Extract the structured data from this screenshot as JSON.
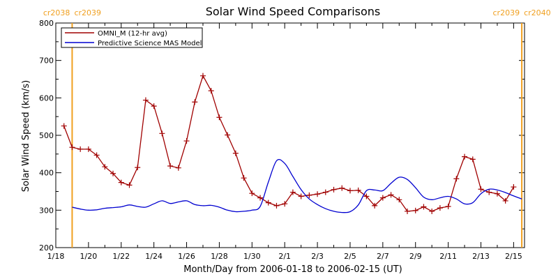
{
  "chart_data": {
    "type": "line",
    "title": "Solar Wind Speed Comparisons",
    "xlabel": "Month/Day from 2006-01-18 to 2006-02-15 (UT)",
    "ylabel": "Solar Wind Speed (km/s)",
    "xlim": [
      "2006-01-18",
      "2006-02-15 16:00"
    ],
    "ylim": [
      200,
      800
    ],
    "yticks": [
      200,
      300,
      400,
      500,
      600,
      700,
      800
    ],
    "xticks": [
      {
        "date": "2006-01-18",
        "label": "1/18"
      },
      {
        "date": "2006-01-20",
        "label": "1/20"
      },
      {
        "date": "2006-01-22",
        "label": "1/22"
      },
      {
        "date": "2006-01-24",
        "label": "1/24"
      },
      {
        "date": "2006-01-26",
        "label": "1/26"
      },
      {
        "date": "2006-01-28",
        "label": "1/28"
      },
      {
        "date": "2006-01-30",
        "label": "1/30"
      },
      {
        "date": "2006-02-01",
        "label": "2/1"
      },
      {
        "date": "2006-02-03",
        "label": "2/3"
      },
      {
        "date": "2006-02-05",
        "label": "2/5"
      },
      {
        "date": "2006-02-07",
        "label": "2/7"
      },
      {
        "date": "2006-02-09",
        "label": "2/9"
      },
      {
        "date": "2006-02-11",
        "label": "2/11"
      },
      {
        "date": "2006-02-13",
        "label": "2/13"
      },
      {
        "date": "2006-02-15",
        "label": "2/15"
      }
    ],
    "legend_position": "top-left",
    "grid": false,
    "markers": [
      {
        "date": "2006-01-19",
        "label_left": "cr2038",
        "label_right": "cr2039",
        "color": "#f0a020"
      },
      {
        "date": "2006-02-15 12:00",
        "label_left": "cr2039",
        "label_right": "cr2040",
        "color": "#f0a020"
      }
    ],
    "series": [
      {
        "name": "OMNI_M (12-hr avg)",
        "color": "#a00000",
        "marker": "plus",
        "points": [
          [
            "2006-01-18 12:00",
            525
          ],
          [
            "2006-01-19 00:00",
            468
          ],
          [
            "2006-01-19 12:00",
            463
          ],
          [
            "2006-01-20 00:00",
            463
          ],
          [
            "2006-01-20 12:00",
            447
          ],
          [
            "2006-01-21 00:00",
            416
          ],
          [
            "2006-01-21 12:00",
            398
          ],
          [
            "2006-01-22 00:00",
            374
          ],
          [
            "2006-01-22 12:00",
            367
          ],
          [
            "2006-01-23 00:00",
            414
          ],
          [
            "2006-01-23 12:00",
            594
          ],
          [
            "2006-01-24 00:00",
            578
          ],
          [
            "2006-01-24 12:00",
            505
          ],
          [
            "2006-01-25 00:00",
            418
          ],
          [
            "2006-01-25 12:00",
            413
          ],
          [
            "2006-01-26 00:00",
            485
          ],
          [
            "2006-01-26 12:00",
            589
          ],
          [
            "2006-01-27 00:00",
            659
          ],
          [
            "2006-01-27 12:00",
            619
          ],
          [
            "2006-01-28 00:00",
            548
          ],
          [
            "2006-01-28 12:00",
            501
          ],
          [
            "2006-01-29 00:00",
            452
          ],
          [
            "2006-01-29 12:00",
            386
          ],
          [
            "2006-01-30 00:00",
            345
          ],
          [
            "2006-01-30 12:00",
            333
          ],
          [
            "2006-01-31 00:00",
            320
          ],
          [
            "2006-01-31 12:00",
            312
          ],
          [
            "2006-02-01 00:00",
            317
          ],
          [
            "2006-02-01 12:00",
            348
          ],
          [
            "2006-02-02 00:00",
            337
          ],
          [
            "2006-02-02 12:00",
            340
          ],
          [
            "2006-02-03 00:00",
            343
          ],
          [
            "2006-02-03 12:00",
            348
          ],
          [
            "2006-02-04 00:00",
            355
          ],
          [
            "2006-02-04 12:00",
            359
          ],
          [
            "2006-02-05 00:00",
            352
          ],
          [
            "2006-02-05 12:00",
            353
          ],
          [
            "2006-02-06 00:00",
            337
          ],
          [
            "2006-02-06 12:00",
            312
          ],
          [
            "2006-02-07 00:00",
            333
          ],
          [
            "2006-02-07 12:00",
            341
          ],
          [
            "2006-02-08 00:00",
            328
          ],
          [
            "2006-02-08 12:00",
            297
          ],
          [
            "2006-02-09 00:00",
            299
          ],
          [
            "2006-02-09 12:00",
            309
          ],
          [
            "2006-02-10 00:00",
            297
          ],
          [
            "2006-02-10 12:00",
            306
          ],
          [
            "2006-02-11 00:00",
            310
          ],
          [
            "2006-02-11 12:00",
            384
          ],
          [
            "2006-02-12 00:00",
            443
          ],
          [
            "2006-02-12 12:00",
            436
          ],
          [
            "2006-02-13 00:00",
            356
          ],
          [
            "2006-02-13 12:00",
            348
          ],
          [
            "2006-02-14 00:00",
            344
          ],
          [
            "2006-02-14 12:00",
            325
          ],
          [
            "2006-02-15 00:00",
            362
          ]
        ]
      },
      {
        "name": "Predictive Science MAS Model",
        "color": "#0000d0",
        "marker": "none",
        "points": [
          [
            "2006-01-19 00:00",
            308
          ],
          [
            "2006-01-19 12:00",
            303
          ],
          [
            "2006-01-20 00:00",
            300
          ],
          [
            "2006-01-20 12:00",
            301
          ],
          [
            "2006-01-21 00:00",
            305
          ],
          [
            "2006-01-21 12:00",
            307
          ],
          [
            "2006-01-22 00:00",
            309
          ],
          [
            "2006-01-22 12:00",
            314
          ],
          [
            "2006-01-23 00:00",
            310
          ],
          [
            "2006-01-23 12:00",
            308
          ],
          [
            "2006-01-24 00:00",
            317
          ],
          [
            "2006-01-24 12:00",
            325
          ],
          [
            "2006-01-25 00:00",
            318
          ],
          [
            "2006-01-25 12:00",
            322
          ],
          [
            "2006-01-26 00:00",
            325
          ],
          [
            "2006-01-26 12:00",
            315
          ],
          [
            "2006-01-27 00:00",
            312
          ],
          [
            "2006-01-27 12:00",
            313
          ],
          [
            "2006-01-28 00:00",
            308
          ],
          [
            "2006-01-28 12:00",
            300
          ],
          [
            "2006-01-29 00:00",
            296
          ],
          [
            "2006-01-29 12:00",
            297
          ],
          [
            "2006-01-30 00:00",
            300
          ],
          [
            "2006-01-30 12:00",
            310
          ],
          [
            "2006-01-31 00:00",
            375
          ],
          [
            "2006-01-31 12:00",
            432
          ],
          [
            "2006-02-01 00:00",
            425
          ],
          [
            "2006-02-01 12:00",
            390
          ],
          [
            "2006-02-02 00:00",
            355
          ],
          [
            "2006-02-02 12:00",
            330
          ],
          [
            "2006-02-03 00:00",
            315
          ],
          [
            "2006-02-03 12:00",
            304
          ],
          [
            "2006-02-04 00:00",
            297
          ],
          [
            "2006-02-04 12:00",
            294
          ],
          [
            "2006-02-05 00:00",
            296
          ],
          [
            "2006-02-05 12:00",
            314
          ],
          [
            "2006-02-06 00:00",
            352
          ],
          [
            "2006-02-06 12:00",
            354
          ],
          [
            "2006-02-07 00:00",
            352
          ],
          [
            "2006-02-07 12:00",
            372
          ],
          [
            "2006-02-08 00:00",
            388
          ],
          [
            "2006-02-08 12:00",
            382
          ],
          [
            "2006-02-09 00:00",
            360
          ],
          [
            "2006-02-09 12:00",
            335
          ],
          [
            "2006-02-10 00:00",
            328
          ],
          [
            "2006-02-10 12:00",
            333
          ],
          [
            "2006-02-11 00:00",
            337
          ],
          [
            "2006-02-11 12:00",
            330
          ],
          [
            "2006-02-12 00:00",
            317
          ],
          [
            "2006-02-12 12:00",
            320
          ],
          [
            "2006-02-13 00:00",
            344
          ],
          [
            "2006-02-13 12:00",
            356
          ],
          [
            "2006-02-14 00:00",
            354
          ],
          [
            "2006-02-14 12:00",
            347
          ],
          [
            "2006-02-15 00:00",
            338
          ],
          [
            "2006-02-15 12:00",
            330
          ]
        ]
      }
    ]
  }
}
